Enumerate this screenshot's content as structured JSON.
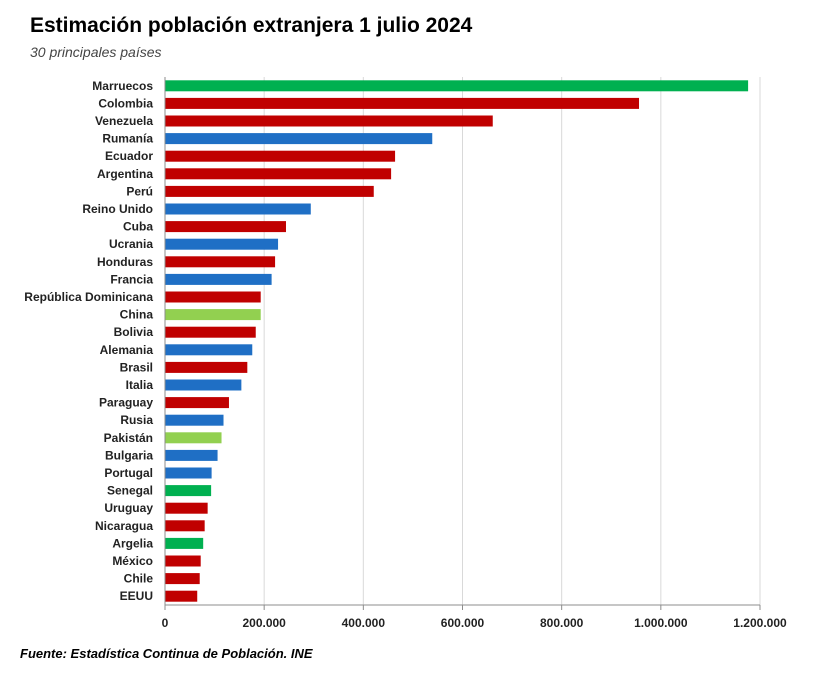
{
  "header": {
    "title": "Estimación población extranjera 1 julio 2024",
    "subtitle": "30 principales países"
  },
  "footer": {
    "source": "Fuente: Estadística Continua de Población. INE"
  },
  "colors": {
    "africa": "#00b050",
    "america": "#c00000",
    "europe": "#1f6fc5",
    "asia": "#92d050",
    "grid": "#d9d9d9",
    "axis": "#8c8c8c"
  },
  "chart_data": {
    "type": "bar",
    "orientation": "horizontal",
    "categories": [
      "Marruecos",
      "Colombia",
      "Venezuela",
      "Rumanía",
      "Ecuador",
      "Argentina",
      "Perú",
      "Reino Unido",
      "Cuba",
      "Ucrania",
      "Honduras",
      "Francia",
      "República Dominicana",
      "China",
      "Bolivia",
      "Alemania",
      "Brasil",
      "Italia",
      "Paraguay",
      "Rusia",
      "Pakistán",
      "Bulgaria",
      "Portugal",
      "Senegal",
      "Uruguay",
      "Nicaragua",
      "Argelia",
      "México",
      "Chile",
      "EEUU"
    ],
    "values": [
      1175000,
      955000,
      660000,
      538000,
      463000,
      455000,
      420000,
      293000,
      243000,
      227000,
      221000,
      214000,
      192000,
      192000,
      182000,
      175000,
      165000,
      153000,
      128000,
      117000,
      113000,
      105000,
      93000,
      92000,
      85000,
      79000,
      76000,
      71000,
      69000,
      64000
    ],
    "groups": [
      "africa",
      "america",
      "america",
      "europe",
      "america",
      "america",
      "america",
      "europe",
      "america",
      "europe",
      "america",
      "europe",
      "america",
      "asia",
      "america",
      "europe",
      "america",
      "europe",
      "america",
      "europe",
      "asia",
      "europe",
      "europe",
      "africa",
      "america",
      "america",
      "africa",
      "america",
      "america",
      "america"
    ],
    "xlim": [
      0,
      1200000
    ],
    "xticks": [
      0,
      200000,
      400000,
      600000,
      800000,
      1000000,
      1200000
    ],
    "xtick_labels": [
      "0",
      "200.000",
      "400.000",
      "600.000",
      "800.000",
      "1.000.000",
      "1.200.000"
    ],
    "grid": true
  }
}
